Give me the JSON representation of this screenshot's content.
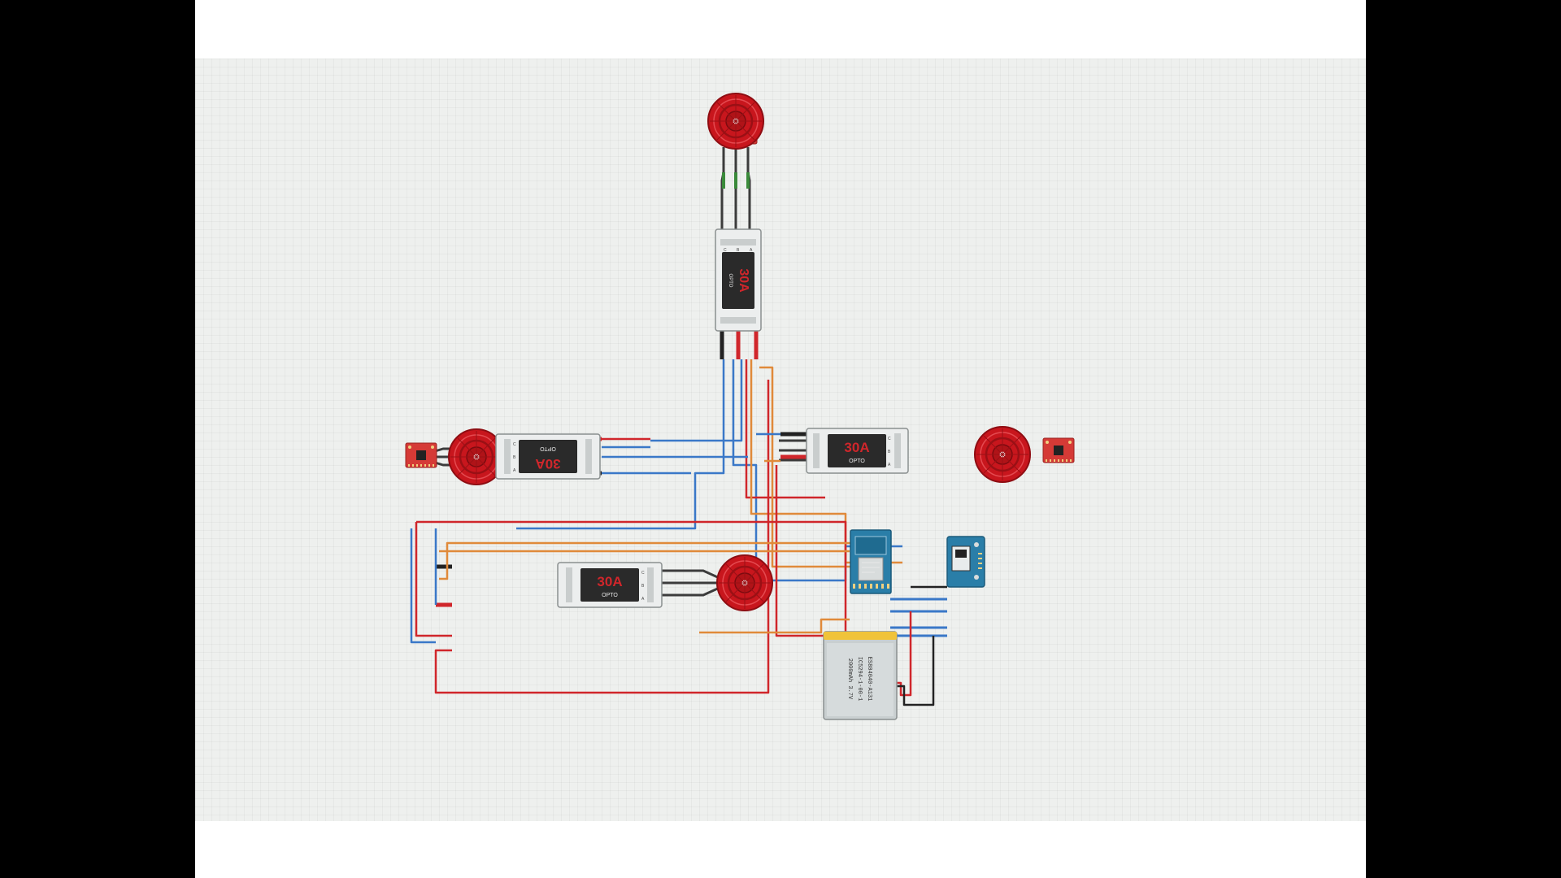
{
  "canvas": {
    "background": "#eef0ee",
    "grid": true
  },
  "colors": {
    "motor": "#c8161d",
    "motor_dark": "#8e0d12",
    "esc_body": "#eceeee",
    "esc_label": "#2a2a2a",
    "esc_accent": "#d0262b",
    "sensor": "#d53a36",
    "wire_red": "#d0262b",
    "wire_blue": "#3a78c8",
    "wire_orange": "#e08a3a",
    "wire_black": "#222222",
    "board": "#2a7ea8",
    "battery": "#f0c33a"
  },
  "escs": [
    {
      "id": "esc-top",
      "amp_label": "30A",
      "brand_label": "OPTO",
      "terminals": [
        "C",
        "B",
        "A"
      ]
    },
    {
      "id": "esc-left",
      "amp_label": "30A",
      "brand_label": "OPTO",
      "terminals": [
        "C",
        "B",
        "A"
      ]
    },
    {
      "id": "esc-right",
      "amp_label": "30A",
      "brand_label": "OPTO",
      "terminals": [
        "C",
        "B",
        "A"
      ]
    },
    {
      "id": "esc-bottom",
      "amp_label": "30A",
      "brand_label": "OPTO",
      "terminals": [
        "C",
        "B",
        "A"
      ]
    }
  ],
  "battery": {
    "lines": [
      "ES804040-A131",
      "IC5294-1-00-1",
      "2000mAh 3.7V"
    ]
  }
}
